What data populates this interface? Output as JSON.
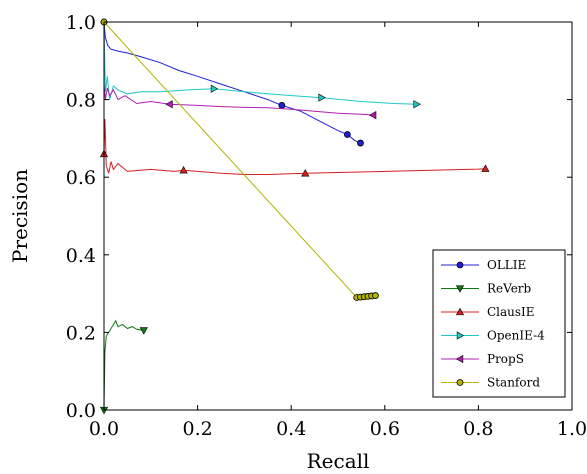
{
  "chart_data": {
    "type": "line",
    "title": "",
    "xlabel": "Recall",
    "ylabel": "Precision",
    "xlim": [
      0,
      1
    ],
    "ylim": [
      0,
      1
    ],
    "xticks": [
      "0.0",
      "0.2",
      "0.4",
      "0.6",
      "0.8",
      "1.0"
    ],
    "yticks": [
      "0.0",
      "0.2",
      "0.4",
      "0.6",
      "0.8",
      "1.0"
    ],
    "grid": false,
    "legend_position": "bottom-right",
    "series": [
      {
        "name": "OLLIE",
        "color": "#1f1fd6",
        "marker": "circle",
        "x": [
          0.0,
          0.003,
          0.008,
          0.015,
          0.03,
          0.05,
          0.08,
          0.12,
          0.16,
          0.2,
          0.25,
          0.3,
          0.35,
          0.38,
          0.42,
          0.46,
          0.5,
          0.52,
          0.535,
          0.548
        ],
        "y": [
          1.0,
          0.96,
          0.94,
          0.93,
          0.925,
          0.92,
          0.91,
          0.895,
          0.875,
          0.86,
          0.84,
          0.82,
          0.8,
          0.785,
          0.77,
          0.745,
          0.72,
          0.71,
          0.695,
          0.688
        ],
        "markers_x": [
          0.0,
          0.38,
          0.52,
          0.548
        ],
        "markers_y": [
          1.0,
          0.785,
          0.71,
          0.688
        ]
      },
      {
        "name": "ReVerb",
        "color": "#0f7a0f",
        "marker": "triangle-down",
        "x": [
          0.0,
          0.002,
          0.005,
          0.01,
          0.015,
          0.02,
          0.025,
          0.03,
          0.04,
          0.05,
          0.06,
          0.07,
          0.08,
          0.085
        ],
        "y": [
          0.0,
          0.15,
          0.19,
          0.2,
          0.21,
          0.22,
          0.23,
          0.215,
          0.22,
          0.21,
          0.215,
          0.208,
          0.206,
          0.205
        ],
        "markers_x": [
          0.0,
          0.085
        ],
        "markers_y": [
          0.0,
          0.205
        ]
      },
      {
        "name": "ClausIE",
        "color": "#d61f1f",
        "marker": "triangle-up",
        "x": [
          0.0,
          0.002,
          0.005,
          0.01,
          0.015,
          0.02,
          0.03,
          0.05,
          0.1,
          0.15,
          0.17,
          0.25,
          0.3,
          0.35,
          0.43,
          0.5,
          0.6,
          0.7,
          0.8,
          0.815
        ],
        "y": [
          0.66,
          0.75,
          0.63,
          0.61,
          0.64,
          0.62,
          0.635,
          0.615,
          0.62,
          0.615,
          0.618,
          0.61,
          0.607,
          0.607,
          0.61,
          0.612,
          0.615,
          0.618,
          0.621,
          0.622
        ],
        "markers_x": [
          0.0,
          0.17,
          0.43,
          0.815
        ],
        "markers_y": [
          0.66,
          0.618,
          0.61,
          0.622
        ]
      },
      {
        "name": "OpenIE-4",
        "color": "#1fc7c7",
        "marker": "triangle-right",
        "x": [
          0.0,
          0.003,
          0.007,
          0.012,
          0.02,
          0.03,
          0.05,
          0.08,
          0.12,
          0.18,
          0.235,
          0.3,
          0.38,
          0.465,
          0.55,
          0.62,
          0.668
        ],
        "y": [
          1.0,
          0.82,
          0.86,
          0.8,
          0.835,
          0.825,
          0.815,
          0.82,
          0.82,
          0.825,
          0.828,
          0.82,
          0.812,
          0.805,
          0.795,
          0.79,
          0.788
        ],
        "markers_x": [
          0.235,
          0.465,
          0.668
        ],
        "markers_y": [
          0.828,
          0.805,
          0.788
        ]
      },
      {
        "name": "PropS",
        "color": "#b01fb0",
        "marker": "triangle-left",
        "x": [
          0.0,
          0.003,
          0.007,
          0.012,
          0.02,
          0.03,
          0.045,
          0.07,
          0.1,
          0.14,
          0.2,
          0.25,
          0.3,
          0.35,
          0.4,
          0.45,
          0.5,
          0.55,
          0.575
        ],
        "y": [
          0.84,
          0.8,
          0.83,
          0.81,
          0.825,
          0.8,
          0.81,
          0.79,
          0.795,
          0.788,
          0.785,
          0.782,
          0.78,
          0.779,
          0.775,
          0.77,
          0.765,
          0.762,
          0.76
        ],
        "markers_x": [
          0.14,
          0.575
        ],
        "markers_y": [
          0.788,
          0.76
        ]
      },
      {
        "name": "Stanford",
        "color": "#b3b300",
        "marker": "circle",
        "x": [
          0.0,
          0.54,
          0.55,
          0.56,
          0.57,
          0.58
        ],
        "y": [
          1.0,
          0.29,
          0.291,
          0.292,
          0.293,
          0.294
        ],
        "markers_x": [
          0.0,
          0.54,
          0.548,
          0.556,
          0.564,
          0.572,
          0.58
        ],
        "markers_y": [
          1.0,
          0.29,
          0.291,
          0.292,
          0.293,
          0.294,
          0.295
        ]
      }
    ]
  }
}
